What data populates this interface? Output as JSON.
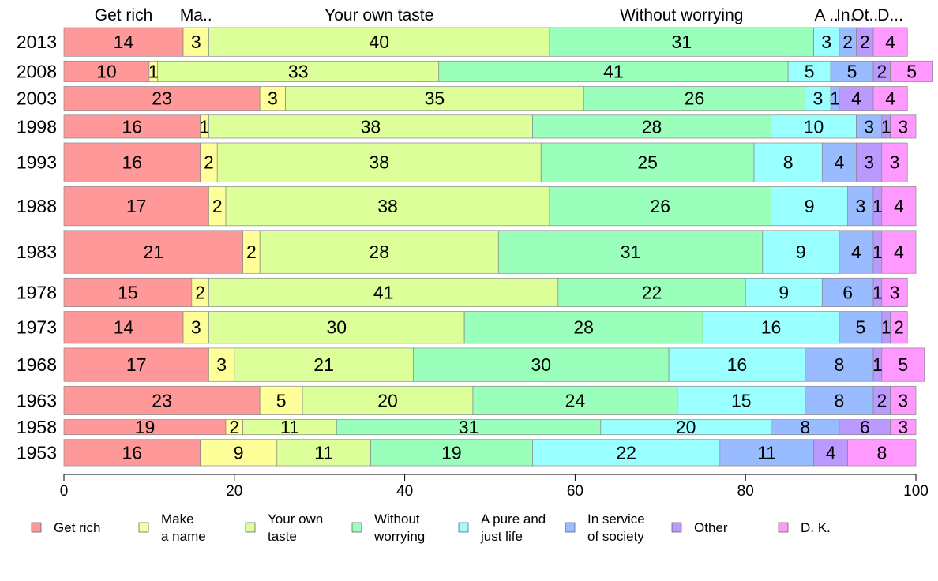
{
  "chart_data": {
    "type": "bar",
    "orientation": "horizontal",
    "stacked": true,
    "xlim": [
      0,
      100
    ],
    "x_ticks": [
      "0",
      "20",
      "40",
      "60",
      "80",
      "100"
    ],
    "categories": [
      "2013",
      "2008",
      "2003",
      "1998",
      "1993",
      "1988",
      "1983",
      "1978",
      "1973",
      "1968",
      "1963",
      "1958",
      "1953"
    ],
    "category_weights": [
      36,
      26,
      30,
      29,
      49,
      49,
      54,
      36,
      40,
      42,
      36,
      19,
      33
    ],
    "top_labels": [
      "Get rich",
      "Ma..",
      "Your own taste",
      "Without worrying",
      "A ..",
      "In..",
      "Ot..",
      "D..."
    ],
    "legend_position": "bottom",
    "series": [
      {
        "name": "Get rich",
        "legend": [
          "Get rich"
        ],
        "color": "#ff9999",
        "values": [
          14,
          10,
          23,
          16,
          16,
          17,
          21,
          15,
          14,
          17,
          23,
          19,
          16
        ]
      },
      {
        "name": "Make a name",
        "legend": [
          "Make",
          "a name"
        ],
        "color": "#ffff99",
        "values": [
          3,
          1,
          3,
          1,
          2,
          2,
          2,
          2,
          3,
          3,
          5,
          2,
          9
        ]
      },
      {
        "name": "Your own taste",
        "legend": [
          "Your own",
          "taste"
        ],
        "color": "#ddff99",
        "values": [
          40,
          33,
          35,
          38,
          38,
          38,
          28,
          41,
          30,
          21,
          20,
          11,
          11
        ]
      },
      {
        "name": "Without worrying",
        "legend": [
          "Without",
          "worrying"
        ],
        "color": "#99ffbb",
        "values": [
          31,
          41,
          26,
          28,
          25,
          26,
          31,
          22,
          28,
          30,
          24,
          31,
          19
        ]
      },
      {
        "name": "A pure and just life",
        "legend": [
          "A pure and",
          "just life"
        ],
        "color": "#99ffff",
        "values": [
          3,
          5,
          3,
          10,
          8,
          9,
          9,
          9,
          16,
          16,
          15,
          20,
          22
        ]
      },
      {
        "name": "In service of society",
        "legend": [
          "In service",
          "of society"
        ],
        "color": "#99bbff",
        "values": [
          2,
          5,
          1,
          3,
          4,
          3,
          4,
          6,
          5,
          8,
          8,
          8,
          11
        ]
      },
      {
        "name": "Other",
        "legend": [
          "Other"
        ],
        "color": "#bb99ff",
        "values": [
          2,
          2,
          4,
          1,
          3,
          1,
          1,
          1,
          1,
          1,
          2,
          6,
          4
        ]
      },
      {
        "name": "D. K.",
        "legend": [
          "D. K."
        ],
        "color": "#ff99ff",
        "values": [
          4,
          5,
          4,
          3,
          3,
          4,
          4,
          3,
          2,
          5,
          3,
          3,
          8
        ]
      }
    ]
  }
}
